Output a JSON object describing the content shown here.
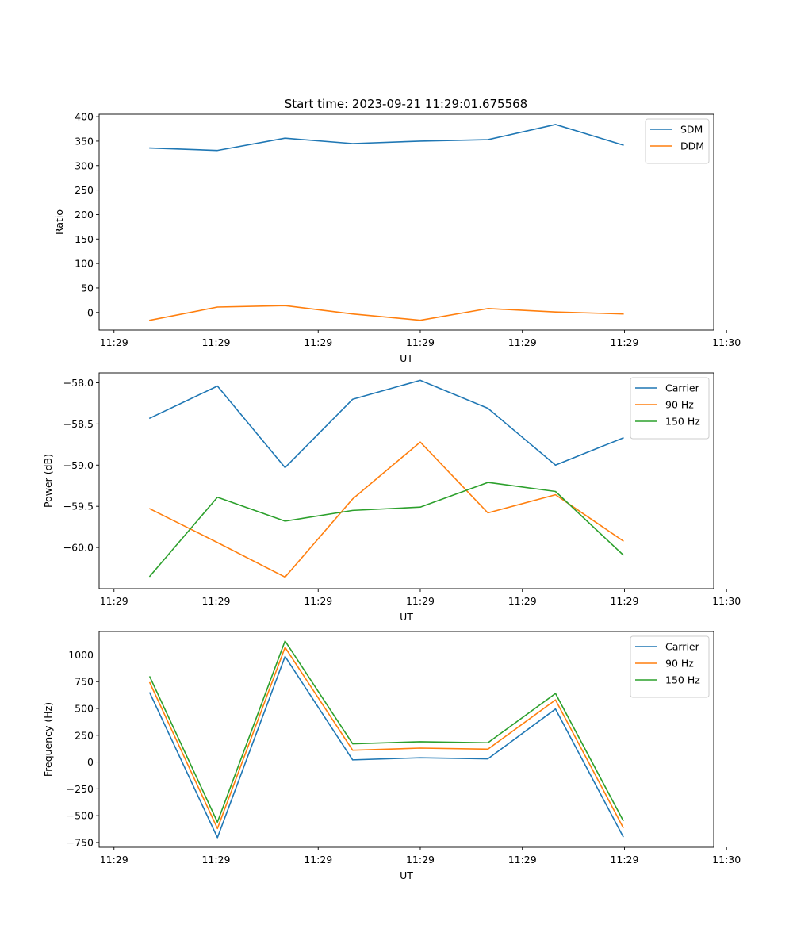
{
  "figure": {
    "title": "Start time: 2023-09-21 11:29:01.675568"
  },
  "chart_data": [
    {
      "type": "line",
      "title": "Start time: 2023-09-21 11:29:01.675568",
      "xlabel": "UT",
      "ylabel": "Ratio",
      "x": [
        1,
        2,
        3,
        4,
        5,
        6,
        7,
        8
      ],
      "xlim": [
        0.25,
        9.34
      ],
      "x_ticks": [
        0.47,
        1.98,
        3.49,
        5.0,
        6.51,
        8.02,
        9.53
      ],
      "x_tick_labels": [
        "11:29",
        "11:29",
        "11:29",
        "11:29",
        "11:29",
        "11:29",
        "11:30"
      ],
      "ylim": [
        -36,
        405
      ],
      "y_ticks": [
        0,
        50,
        100,
        150,
        200,
        250,
        300,
        350,
        400
      ],
      "y_tick_labels": [
        "0",
        "50",
        "100",
        "150",
        "200",
        "250",
        "300",
        "350",
        "400"
      ],
      "legend_position": "top-right",
      "series": [
        {
          "name": "SDM",
          "color": "#1f77b4",
          "values": [
            336,
            331,
            356,
            345,
            350,
            353,
            384,
            342
          ]
        },
        {
          "name": "DDM",
          "color": "#ff7f0e",
          "values": [
            -16,
            11,
            14,
            -3,
            -16,
            8,
            1,
            -3
          ]
        }
      ]
    },
    {
      "type": "line",
      "title": "",
      "xlabel": "UT",
      "ylabel": "Power (dB)",
      "x": [
        1,
        2,
        3,
        4,
        5,
        6,
        7,
        8
      ],
      "xlim": [
        0.25,
        9.34
      ],
      "x_ticks": [
        0.47,
        1.98,
        3.49,
        5.0,
        6.51,
        8.02,
        9.53
      ],
      "x_tick_labels": [
        "11:29",
        "11:29",
        "11:29",
        "11:29",
        "11:29",
        "11:29",
        "11:30"
      ],
      "ylim": [
        -60.5,
        -57.88
      ],
      "y_ticks": [
        -60.0,
        -59.5,
        -59.0,
        -58.5,
        -58.0
      ],
      "y_tick_labels": [
        "−60.0",
        "−59.5",
        "−59.0",
        "−58.5",
        "−58.0"
      ],
      "legend_position": "top-right",
      "series": [
        {
          "name": "Carrier",
          "color": "#1f77b4",
          "values": [
            -58.43,
            -58.04,
            -59.03,
            -58.2,
            -57.97,
            -58.31,
            -59.0,
            -58.67
          ]
        },
        {
          "name": "90 Hz",
          "color": "#ff7f0e",
          "values": [
            -59.53,
            -59.94,
            -60.36,
            -59.41,
            -58.72,
            -59.58,
            -59.36,
            -59.92
          ]
        },
        {
          "name": "150 Hz",
          "color": "#2ca02c",
          "values": [
            -60.35,
            -59.39,
            -59.68,
            -59.55,
            -59.51,
            -59.21,
            -59.32,
            -60.09
          ]
        }
      ]
    },
    {
      "type": "line",
      "title": "",
      "xlabel": "UT",
      "ylabel": "Frequency (Hz)",
      "x": [
        1,
        2,
        3,
        4,
        5,
        6,
        7,
        8
      ],
      "xlim": [
        0.25,
        9.34
      ],
      "x_ticks": [
        0.47,
        1.98,
        3.49,
        5.0,
        6.51,
        8.02,
        9.53
      ],
      "x_tick_labels": [
        "11:29",
        "11:29",
        "11:29",
        "11:29",
        "11:29",
        "11:29",
        "11:30"
      ],
      "ylim": [
        -795,
        1218
      ],
      "y_ticks": [
        -750,
        -500,
        -250,
        0,
        250,
        500,
        750,
        1000
      ],
      "y_tick_labels": [
        "−750",
        "−500",
        "−250",
        "0",
        "250",
        "500",
        "750",
        "1000"
      ],
      "legend_position": "top-right",
      "series": [
        {
          "name": "Carrier",
          "color": "#1f77b4",
          "values": [
            645,
            -705,
            985,
            20,
            40,
            30,
            495,
            -695
          ]
        },
        {
          "name": "90 Hz",
          "color": "#ff7f0e",
          "values": [
            740,
            -620,
            1070,
            110,
            130,
            120,
            580,
            -610
          ]
        },
        {
          "name": "150 Hz",
          "color": "#2ca02c",
          "values": [
            795,
            -560,
            1130,
            170,
            190,
            180,
            640,
            -545
          ]
        }
      ]
    }
  ]
}
